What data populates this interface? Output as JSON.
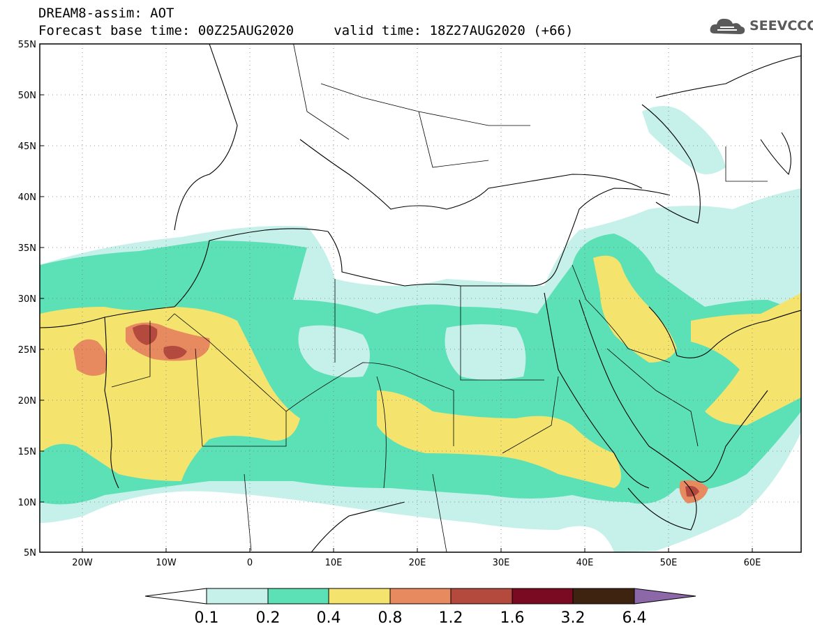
{
  "header": {
    "line1": "DREAM8-assim: AOT",
    "line2": "Forecast base time: 00Z25AUG2020     valid time: 18Z27AUG2020 (+66)"
  },
  "logo": {
    "text": "SEEVCCC",
    "icon": "cloud-icon",
    "color": "#5a5a5a"
  },
  "map": {
    "lat_ticks": [
      "55N",
      "50N",
      "45N",
      "40N",
      "35N",
      "30N",
      "25N",
      "20N",
      "15N",
      "10N",
      "5N"
    ],
    "lon_ticks": [
      "20W",
      "10W",
      "0",
      "10E",
      "20E",
      "30E",
      "40E",
      "50E",
      "60E"
    ],
    "lat_range": [
      5,
      55
    ],
    "lon_range": [
      -25,
      65
    ],
    "gridlines": "dotted"
  },
  "colorbar": {
    "levels": [
      "0.1",
      "0.2",
      "0.4",
      "0.8",
      "1.2",
      "1.6",
      "3.2",
      "6.4"
    ],
    "colors": [
      "#c6f0ea",
      "#5ce0b6",
      "#f4e46e",
      "#e88a60",
      "#b44a3e",
      "#7a0a22",
      "#3e2410",
      "#8c68a8"
    ],
    "under_color": "#ffffff"
  },
  "colors": {
    "c1": "#c6f0ea",
    "c2": "#5ce0b6",
    "c3": "#f4e46e",
    "c4": "#e88a60",
    "c5": "#b44a3e",
    "c6": "#7a0a22"
  }
}
